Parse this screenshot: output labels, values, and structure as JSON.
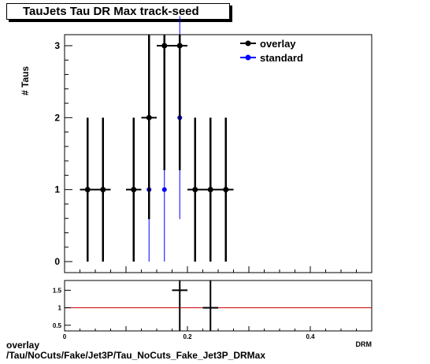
{
  "title": "TauJets Tau DR Max track-seed",
  "footer": {
    "line1": "overlay",
    "line2": "/Tau/NoCuts/Fake/Jet3P/Tau_NoCuts_Fake_Jet3P_DRMax"
  },
  "colors": {
    "overlay": "#000000",
    "standard": "#0000ff",
    "ratio_line": "#cc0000"
  },
  "chart_data": [
    {
      "type": "scatter",
      "title": "TauJets Tau DR Max track-seed",
      "ylabel": "# Taus",
      "xlabel": "",
      "xlim": [
        0,
        0.5
      ],
      "ylim": [
        0,
        3.2
      ],
      "yticks": [
        "0",
        "1",
        "2",
        "3"
      ],
      "legend": {
        "placement": "top-right",
        "entries": [
          "overlay",
          "standard"
        ]
      },
      "grid": false,
      "series": [
        {
          "name": "overlay",
          "points": [
            {
              "x": 0.0375,
              "y": 1,
              "err": 1
            },
            {
              "x": 0.0625,
              "y": 1,
              "err": 1
            },
            {
              "x": 0.1125,
              "y": 1,
              "err": 1
            },
            {
              "x": 0.1375,
              "y": 2,
              "err": 1.41
            },
            {
              "x": 0.1625,
              "y": 3,
              "err": 1.73
            },
            {
              "x": 0.1875,
              "y": 3,
              "err": 1.73
            },
            {
              "x": 0.2125,
              "y": 1,
              "err": 1
            },
            {
              "x": 0.2375,
              "y": 1,
              "err": 1
            },
            {
              "x": 0.2625,
              "y": 1,
              "err": 1
            }
          ]
        },
        {
          "name": "standard",
          "points": [
            {
              "x": 0.1375,
              "y": 1,
              "err": 1
            },
            {
              "x": 0.1625,
              "y": 1,
              "err": 1
            },
            {
              "x": 0.1875,
              "y": 2,
              "err": 1.41
            }
          ]
        }
      ]
    },
    {
      "type": "scatter",
      "xlim": [
        0,
        0.5
      ],
      "xticks": [
        "0",
        "0.2",
        "0.4"
      ],
      "ylim": [
        0.3,
        1.75
      ],
      "yticks": [
        "0.5",
        "1",
        "1.5"
      ],
      "reference_line": 1,
      "points": [
        {
          "x": 0.1875,
          "y": 1.5,
          "err": 1.5
        },
        {
          "x": 0.2375,
          "y": 1.0,
          "err": 1.0
        }
      ],
      "x_axis_label_partial": "DRM"
    }
  ]
}
